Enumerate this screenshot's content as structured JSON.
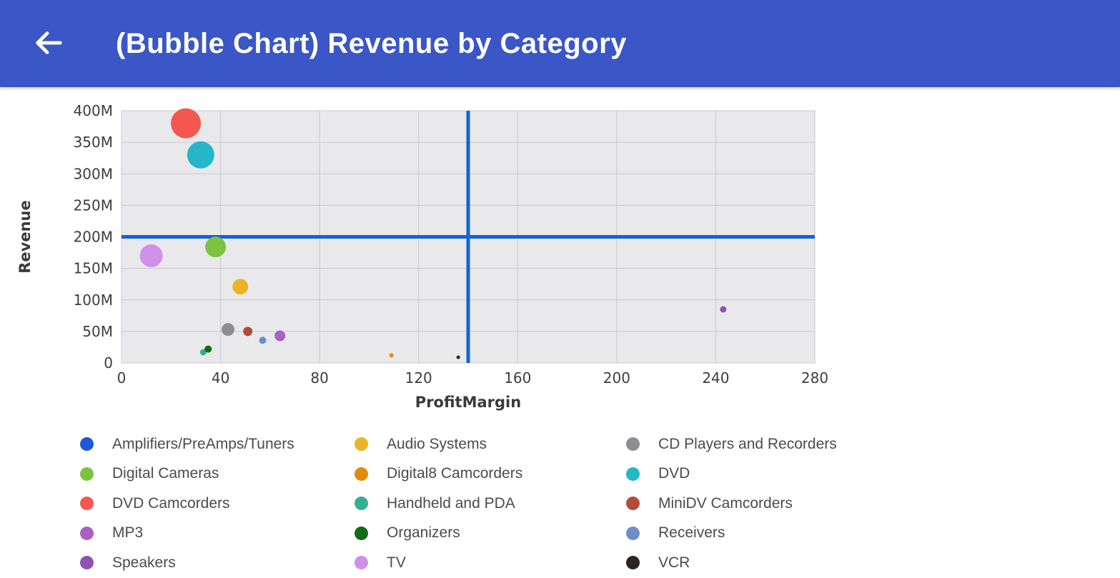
{
  "header": {
    "title": "(Bubble Chart) Revenue by Category",
    "back_icon": "arrow-left"
  },
  "colors": {
    "appbar": "#3a56c7",
    "plot_bg": "#e9e9ec",
    "grid": "#c9c9cf",
    "crosshair": "#0e65d6",
    "tick_text": "#3d3d3d",
    "axis_label_text": "#3a3a3a"
  },
  "chart_data": {
    "type": "scatter",
    "subtype": "bubble",
    "title": "(Bubble Chart) Revenue by Category",
    "xlabel": "ProfitMargin",
    "ylabel": "Revenue",
    "xlim": [
      0,
      280
    ],
    "ylim": [
      0,
      400
    ],
    "grid": true,
    "legend_position": "bottom",
    "x_ticks": [
      {
        "v": 0,
        "label": "0"
      },
      {
        "v": 40,
        "label": "40"
      },
      {
        "v": 80,
        "label": "80"
      },
      {
        "v": 120,
        "label": "120"
      },
      {
        "v": 160,
        "label": "160"
      },
      {
        "v": 200,
        "label": "200"
      },
      {
        "v": 240,
        "label": "240"
      },
      {
        "v": 280,
        "label": "280"
      }
    ],
    "y_ticks": [
      {
        "v": 0,
        "label": "0"
      },
      {
        "v": 50,
        "label": "50M"
      },
      {
        "v": 100,
        "label": "100M"
      },
      {
        "v": 150,
        "label": "150M"
      },
      {
        "v": 200,
        "label": "200M"
      },
      {
        "v": 250,
        "label": "250M"
      },
      {
        "v": 300,
        "label": "300M"
      },
      {
        "v": 350,
        "label": "350M"
      },
      {
        "v": 400,
        "label": "400M"
      }
    ],
    "crosshair": {
      "x": 140,
      "y": 200,
      "color": "#0e65d6",
      "thickness": 5
    },
    "points": [
      {
        "label": "DVD Camcorders",
        "x": 26,
        "y": 380,
        "r": 21,
        "color": "#f35750"
      },
      {
        "label": "DVD",
        "x": 32,
        "y": 330,
        "r": 19,
        "color": "#25b6c8"
      },
      {
        "label": "Digital Cameras",
        "x": 38,
        "y": 184,
        "r": 14.5,
        "color": "#7cc340"
      },
      {
        "label": "TV",
        "x": 12,
        "y": 170,
        "r": 16,
        "color": "#cf90ea"
      },
      {
        "label": "Audio Systems",
        "x": 48,
        "y": 121,
        "r": 11,
        "color": "#ecb424"
      },
      {
        "label": "CD Players and Recorders",
        "x": 43,
        "y": 53,
        "r": 9,
        "color": "#8d8d92"
      },
      {
        "label": "MiniDV Camcorders",
        "x": 51,
        "y": 50,
        "r": 6.5,
        "color": "#b14c3a"
      },
      {
        "label": "Receivers",
        "x": 57,
        "y": 36,
        "r": 5,
        "color": "#6e8ec9"
      },
      {
        "label": "MP3",
        "x": 64,
        "y": 43,
        "r": 7.5,
        "color": "#a961c6"
      },
      {
        "label": "Handheld and PDA",
        "x": 33,
        "y": 17,
        "r": 4.5,
        "color": "#35af92"
      },
      {
        "label": "Organizers",
        "x": 35,
        "y": 22,
        "r": 5,
        "color": "#0e6b18"
      },
      {
        "label": "Digital8 Camcorders",
        "x": 109,
        "y": 12,
        "r": 3,
        "color": "#e08c09"
      },
      {
        "label": "VCR",
        "x": 136,
        "y": 9,
        "r": 2.5,
        "color": "#2d2420"
      },
      {
        "label": "Speakers",
        "x": 243,
        "y": 85,
        "r": 4.5,
        "color": "#9050b4"
      }
    ],
    "legend": [
      {
        "label": "Amplifiers/PreAmps/Tuners",
        "color": "#1f58d8"
      },
      {
        "label": "Audio Systems",
        "color": "#ecb424"
      },
      {
        "label": "CD Players and Recorders",
        "color": "#8d8d92"
      },
      {
        "label": "Digital Cameras",
        "color": "#7cc340"
      },
      {
        "label": "Digital8 Camcorders",
        "color": "#e08c09"
      },
      {
        "label": "DVD",
        "color": "#25b6c8"
      },
      {
        "label": "DVD Camcorders",
        "color": "#f35750"
      },
      {
        "label": "Handheld and PDA",
        "color": "#35af92"
      },
      {
        "label": "MiniDV Camcorders",
        "color": "#b14c3a"
      },
      {
        "label": "MP3",
        "color": "#a961c6"
      },
      {
        "label": "Organizers",
        "color": "#0e6b18"
      },
      {
        "label": "Receivers",
        "color": "#6e8ec9"
      },
      {
        "label": "Speakers",
        "color": "#9050b4"
      },
      {
        "label": "TV",
        "color": "#cf90ea"
      },
      {
        "label": "VCR",
        "color": "#2d2420"
      }
    ]
  }
}
